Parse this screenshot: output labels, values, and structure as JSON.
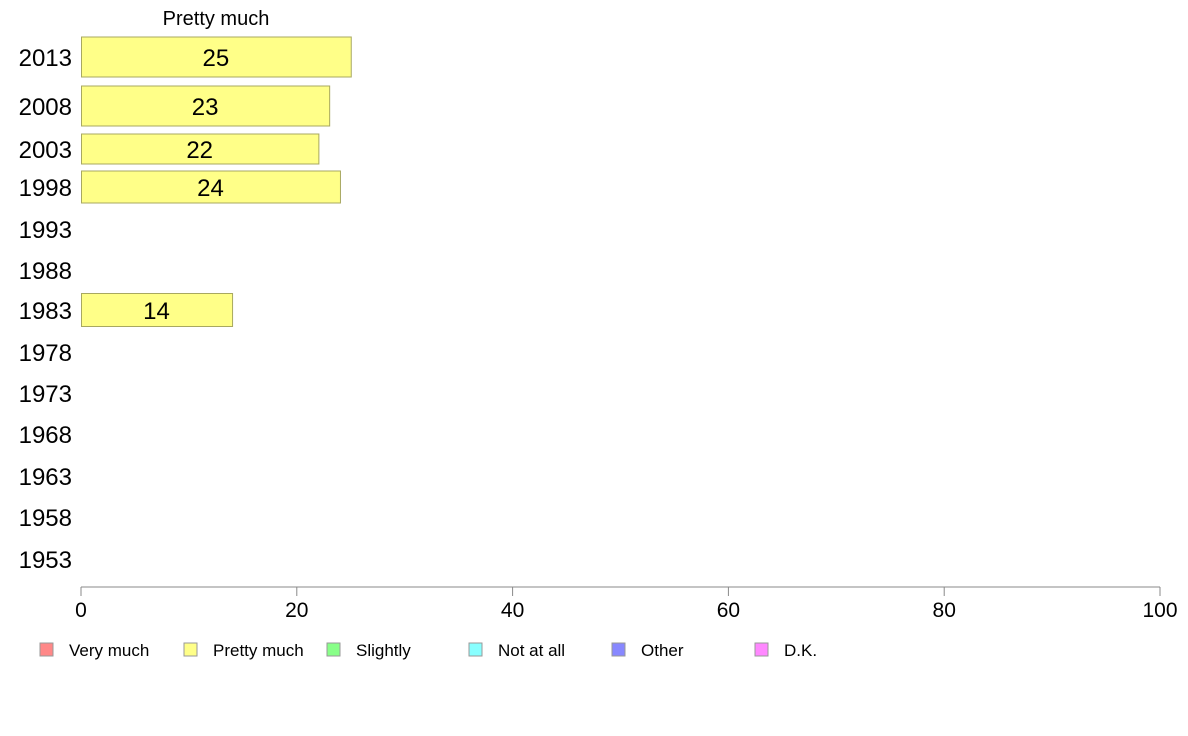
{
  "chart_data": {
    "type": "bar",
    "orientation": "horizontal",
    "title": "Pretty much",
    "categories": [
      "2013",
      "2008",
      "2003",
      "1998",
      "1993",
      "1988",
      "1983",
      "1978",
      "1973",
      "1968",
      "1963",
      "1958",
      "1953"
    ],
    "series": [
      {
        "name": "Pretty much",
        "color": "#ffff88",
        "values": [
          25,
          23,
          22,
          24,
          null,
          null,
          14,
          null,
          null,
          null,
          null,
          null,
          null
        ]
      }
    ],
    "xlim": [
      0,
      100
    ],
    "xticks": [
      0,
      20,
      40,
      60,
      80,
      100
    ],
    "xlabel": "",
    "ylabel": "",
    "grid": false,
    "legend": {
      "placement": "bottom",
      "items": [
        {
          "label": "Very much",
          "color": "#ff8888"
        },
        {
          "label": "Pretty much",
          "color": "#ffff88"
        },
        {
          "label": "Slightly",
          "color": "#88ff88"
        },
        {
          "label": "Not at all",
          "color": "#88ffff"
        },
        {
          "label": "Other",
          "color": "#8888ff"
        },
        {
          "label": "D.K.",
          "color": "#ff88ff"
        }
      ]
    }
  }
}
